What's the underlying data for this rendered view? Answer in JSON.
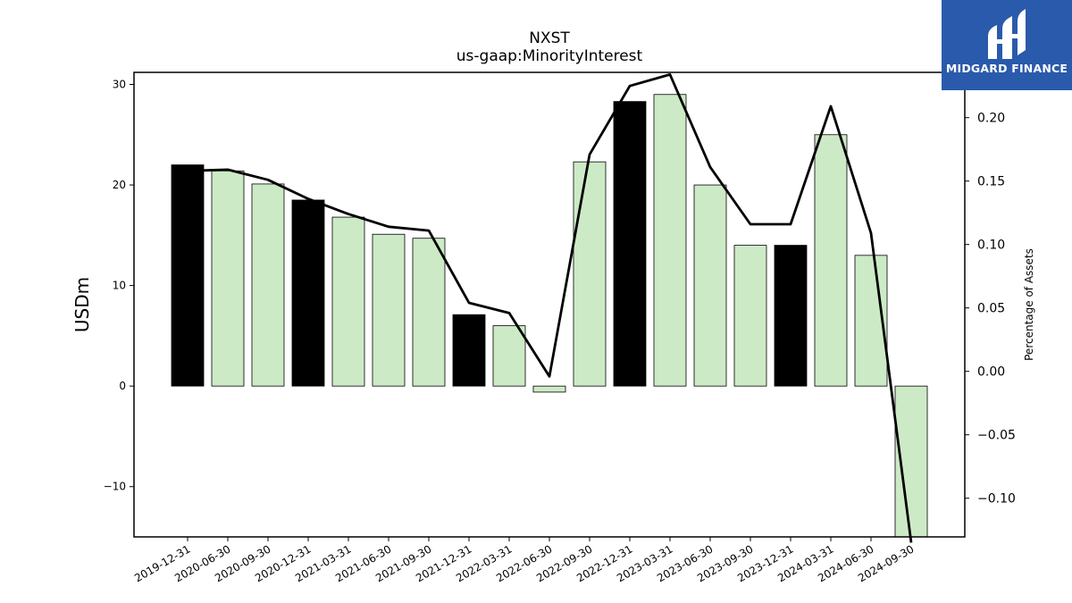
{
  "chart_data": {
    "type": "bar",
    "title": "NXST",
    "subtitle": "us-gaap:MinorityInterest",
    "ylabel": "USDm",
    "y2label": "Percentage of Assets",
    "ylim": [
      -15,
      31.2
    ],
    "y2lim": [
      -0.1305,
      0.2357
    ],
    "yticks": [
      -10,
      0,
      10,
      20,
      30
    ],
    "y2ticks": [
      -0.1,
      -0.05,
      0.0,
      0.05,
      0.1,
      0.15,
      0.2
    ],
    "y2ticklabels": [
      "−0.10",
      "−0.05",
      "0.00",
      "0.05",
      "0.10",
      "0.15",
      "0.20"
    ],
    "yticklabels": [
      "−10",
      "0",
      "10",
      "20",
      "30"
    ],
    "categories": [
      "2019-12-31",
      "2020-06-30",
      "2020-09-30",
      "2020-12-31",
      "2021-03-31",
      "2021-06-30",
      "2021-09-30",
      "2021-12-31",
      "2022-03-31",
      "2022-06-30",
      "2022-09-30",
      "2022-12-31",
      "2023-03-31",
      "2023-06-30",
      "2023-09-30",
      "2023-12-31",
      "2024-03-31",
      "2024-06-30",
      "2024-09-30"
    ],
    "values": [
      22.0,
      21.4,
      20.1,
      18.5,
      16.8,
      15.1,
      14.7,
      7.1,
      6.0,
      -0.6,
      22.3,
      28.3,
      29.0,
      20.0,
      14.0,
      14.0,
      25.0,
      13.0,
      -15.5
    ],
    "annual": [
      true,
      false,
      false,
      true,
      false,
      false,
      false,
      true,
      false,
      false,
      false,
      true,
      false,
      false,
      false,
      true,
      false,
      false,
      false
    ],
    "line_values": [
      0.158,
      0.159,
      0.151,
      0.136,
      0.124,
      0.114,
      0.111,
      0.054,
      0.046,
      -0.004,
      0.171,
      0.225,
      0.234,
      0.161,
      0.116,
      0.116,
      0.209,
      0.109,
      -0.135
    ],
    "colors": {
      "annual_bar": "#000000",
      "quarter_bar": "#cdeac6",
      "line": "#000000"
    },
    "grid": false
  },
  "logo": {
    "text": "MIDGARD FINANCE",
    "bg": "#2a5aab"
  }
}
